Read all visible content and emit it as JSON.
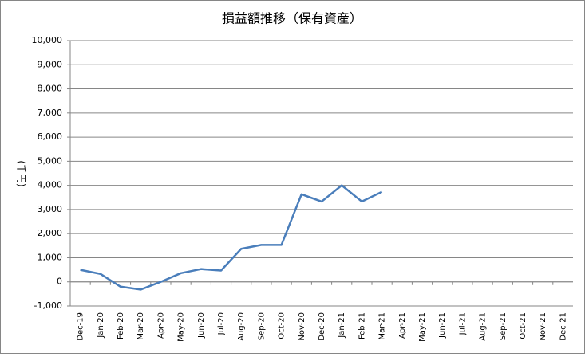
{
  "chart_data": {
    "type": "line",
    "title": "損益額推移（保有資産）",
    "y_label": "(千円)",
    "categories": [
      "Dec-19",
      "Jan-20",
      "Feb-20",
      "Mar-20",
      "Apr-20",
      "May-20",
      "Jun-20",
      "Jul-20",
      "Aug-20",
      "Sep-20",
      "Oct-20",
      "Nov-20",
      "Dec-20",
      "Jan-21",
      "Feb-21",
      "Mar-21",
      "Apr-21",
      "May-21",
      "Jun-21",
      "Jul-21",
      "Aug-21",
      "Sep-21",
      "Oct-21",
      "Nov-21",
      "Dec-21"
    ],
    "series": [
      {
        "name": "損益額",
        "color": "#4a7ebb",
        "values": [
          500,
          330,
          -200,
          -320,
          0,
          360,
          530,
          470,
          1370,
          1530,
          1530,
          3630,
          3330,
          4000,
          3330,
          3730,
          null,
          null,
          null,
          null,
          null,
          null,
          null,
          null,
          null
        ]
      }
    ],
    "ylim": [
      -1000,
      10000
    ],
    "yticks": [
      {
        "value": -1000,
        "label": "-1,000"
      },
      0,
      {
        "value": 1000,
        "label": "1,000"
      },
      {
        "value": 2000,
        "label": "2,000"
      },
      {
        "value": 3000,
        "label": "3,000"
      },
      {
        "value": 4000,
        "label": "4,000"
      },
      {
        "value": 5000,
        "label": "5,000"
      },
      {
        "value": 6000,
        "label": "6,000"
      },
      {
        "value": 7000,
        "label": "7,000"
      },
      {
        "value": 8000,
        "label": "8,000"
      },
      {
        "value": 9000,
        "label": "9,000"
      },
      {
        "value": 10000,
        "label": "10,000"
      }
    ],
    "grid": true
  }
}
